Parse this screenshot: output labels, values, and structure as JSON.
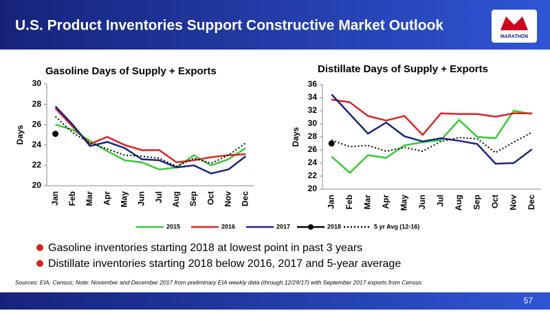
{
  "header": {
    "title": "U.S. Product Inventories Support Constructive Market Outlook",
    "logo": "MARATHON"
  },
  "chart_data": [
    {
      "type": "line",
      "title": "Gasoline Days of Supply + Exports",
      "y_label": "Days",
      "categories": [
        "Jan",
        "Feb",
        "Mar",
        "Apr",
        "May",
        "Jun",
        "Jul",
        "Aug",
        "Sep",
        "Oct",
        "Nov",
        "Dec"
      ],
      "ylim": [
        20,
        30
      ],
      "yticks": [
        20,
        22,
        24,
        26,
        28,
        30
      ],
      "series": [
        {
          "name": "2015",
          "color": "#33cc33",
          "values": [
            26.0,
            25.5,
            24.4,
            23.4,
            22.5,
            22.3,
            21.6,
            21.8,
            23.0,
            22.0,
            22.6,
            23.7
          ]
        },
        {
          "name": "2016",
          "color": "#e02020",
          "values": [
            27.6,
            25.8,
            24.1,
            24.8,
            24.0,
            23.5,
            23.5,
            22.3,
            22.5,
            22.8,
            23.0,
            23.1
          ]
        },
        {
          "name": "2017",
          "color": "#1a237e",
          "values": [
            27.8,
            26.0,
            23.9,
            24.3,
            23.7,
            22.6,
            22.5,
            21.8,
            22.0,
            21.2,
            21.6,
            22.9
          ]
        },
        {
          "name": "2018",
          "color": "#000000",
          "marker": true,
          "values": [
            25.1,
            null,
            null,
            null,
            null,
            null,
            null,
            null,
            null,
            null,
            null,
            null
          ]
        },
        {
          "name": "5 yr Avg (12-16)",
          "color": "#000000",
          "dash": true,
          "values": [
            26.8,
            25.2,
            24.2,
            23.6,
            23.0,
            22.9,
            22.7,
            21.9,
            22.7,
            22.2,
            23.0,
            24.2
          ]
        }
      ]
    },
    {
      "type": "line",
      "title": "Distillate Days of Supply + Exports",
      "y_label": "Days",
      "categories": [
        "Jan",
        "Feb",
        "Mar",
        "Apr",
        "May",
        "Jun",
        "Jul",
        "Aug",
        "Sep",
        "Oct",
        "Nov",
        "Dec"
      ],
      "ylim": [
        20,
        36
      ],
      "yticks": [
        20,
        22,
        24,
        26,
        28,
        30,
        32,
        34,
        36
      ],
      "series": [
        {
          "color": "#33cc33",
          "values": [
            25.0,
            22.5,
            25.2,
            24.8,
            26.7,
            27.2,
            27.5,
            30.6,
            28.0,
            27.8,
            32.0,
            31.5
          ]
        },
        {
          "color": "#e02020",
          "values": [
            33.7,
            33.3,
            31.2,
            30.5,
            31.2,
            28.3,
            31.6,
            31.5,
            31.5,
            31.1,
            31.6,
            31.6
          ]
        },
        {
          "color": "#1a237e",
          "values": [
            34.5,
            31.5,
            28.5,
            30.2,
            28.1,
            27.3,
            27.8,
            27.4,
            26.9,
            23.9,
            24.0,
            26.1
          ]
        },
        {
          "color": "#000000",
          "marker": true,
          "values": [
            27.0,
            null,
            null,
            null,
            null,
            null,
            null,
            null,
            null,
            null,
            null,
            null
          ]
        },
        {
          "color": "#000000",
          "dash": true,
          "values": [
            27.5,
            26.5,
            26.7,
            25.8,
            26.4,
            25.8,
            27.3,
            27.9,
            27.7,
            25.6,
            27.2,
            28.7
          ]
        }
      ]
    }
  ],
  "bullets": [
    "Gasoline inventories starting 2018 at lowest point in past 3 years",
    "Distillate inventories starting 2018 below 2016, 2017 and 5-year average"
  ],
  "sources": "Sources: EIA, Census; Note: November and December 2017 from preliminary EIA weekly data (through 12/29/17) with September 2017 exports from Census",
  "page_number": "57"
}
